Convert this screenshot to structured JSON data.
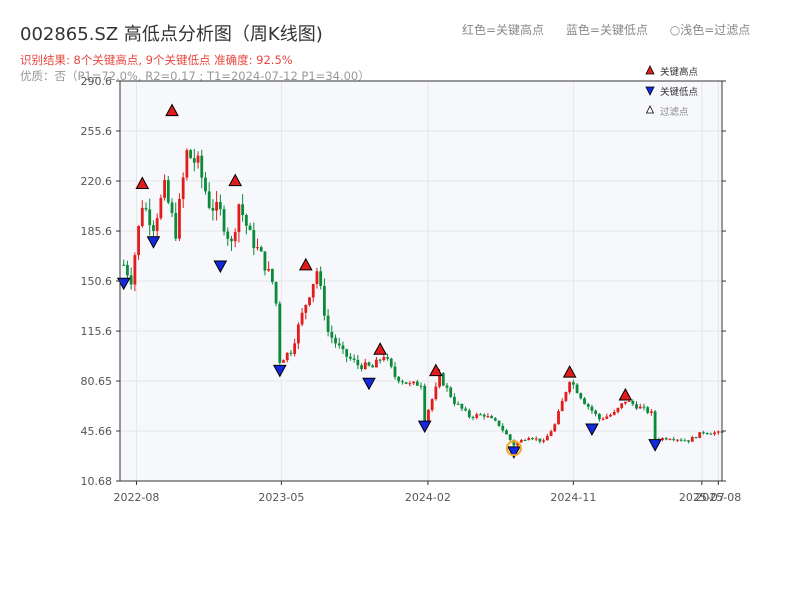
{
  "header": {
    "title": "002865.SZ 高低点分析图（周K线图)",
    "result_line": "识别结果: 8个关键高点, 9个关键低点  准确度: 92.5%",
    "quality_line": "优质：否（P1=72.0%, R2=0.17 ; T1=2024-07-12 P1=34.00）"
  },
  "top_legend": {
    "red": "红色=关键高点",
    "blue": "蓝色=关键低点",
    "light": "○浅色=过滤点"
  },
  "colors": {
    "up": "#e21b1b",
    "down": "#0b8a3a",
    "high_marker": "#e21b1b",
    "low_marker": "#1428e0",
    "filtered_ring": "#f5a623",
    "grid": "#e6e6ea",
    "plot_bg": "#f7f8fb",
    "axis": "#333333"
  },
  "chart_data": {
    "type": "candlestick",
    "title": "002865.SZ 高低点分析图（周K线图)",
    "x_range": [
      "2022-07-01",
      "2025-08-08"
    ],
    "x_ticks": [
      {
        "date": "2022-08-01",
        "label": "2022-08"
      },
      {
        "date": "2023-05-01",
        "label": "2023-05"
      },
      {
        "date": "2024-02-01",
        "label": "2024-02"
      },
      {
        "date": "2024-11-01",
        "label": "2024-11"
      },
      {
        "date": "2025-07-01",
        "label": "2025-07"
      },
      {
        "date": "2025-08-01",
        "label": "2025-08"
      }
    ],
    "ylim": [
      10.68,
      290.6
    ],
    "y_ticks": [
      {
        "value": 10.68,
        "label": "10.68"
      },
      {
        "value": 45.66,
        "label": "45.66"
      },
      {
        "value": 80.65,
        "label": "80.65"
      },
      {
        "value": 115.6,
        "label": "115.6"
      },
      {
        "value": 150.6,
        "label": "150.6"
      },
      {
        "value": 185.6,
        "label": "185.6"
      },
      {
        "value": 220.6,
        "label": "220.6"
      },
      {
        "value": 255.6,
        "label": "255.6"
      },
      {
        "value": 290.6,
        "label": "290.6"
      }
    ],
    "grid": true,
    "legend_position": "top-right",
    "legend": [
      "关键高点",
      "关键低点",
      "过滤点"
    ],
    "close_path": [
      [
        "2022-07-08",
        162
      ],
      [
        "2022-07-22",
        152
      ],
      [
        "2022-08-12",
        205
      ],
      [
        "2022-09-02",
        190
      ],
      [
        "2022-09-23",
        215
      ],
      [
        "2022-10-14",
        185
      ],
      [
        "2022-11-04",
        240
      ],
      [
        "2022-11-25",
        232
      ],
      [
        "2022-12-16",
        205
      ],
      [
        "2023-01-06",
        198
      ],
      [
        "2023-01-27",
        176
      ],
      [
        "2023-02-10",
        205
      ],
      [
        "2023-03-03",
        182
      ],
      [
        "2023-03-24",
        168
      ],
      [
        "2023-04-14",
        150
      ],
      [
        "2023-04-21",
        135
      ],
      [
        "2023-04-28",
        95
      ],
      [
        "2023-05-19",
        102
      ],
      [
        "2023-06-16",
        135
      ],
      [
        "2023-07-07",
        158
      ],
      [
        "2023-07-28",
        115
      ],
      [
        "2023-08-25",
        100
      ],
      [
        "2023-09-22",
        92
      ],
      [
        "2023-10-20",
        90
      ],
      [
        "2023-11-10",
        99
      ],
      [
        "2023-12-01",
        84
      ],
      [
        "2023-12-29",
        78
      ],
      [
        "2024-01-19",
        79
      ],
      [
        "2024-01-26",
        54
      ],
      [
        "2024-02-16",
        75
      ],
      [
        "2024-02-23",
        84
      ],
      [
        "2024-03-22",
        66
      ],
      [
        "2024-04-19",
        56
      ],
      [
        "2024-05-17",
        57
      ],
      [
        "2024-06-14",
        50
      ],
      [
        "2024-07-12",
        36
      ],
      [
        "2024-08-09",
        42
      ],
      [
        "2024-09-06",
        38
      ],
      [
        "2024-09-27",
        50
      ],
      [
        "2024-10-25",
        82
      ],
      [
        "2024-11-22",
        66
      ],
      [
        "2024-12-20",
        54
      ],
      [
        "2025-01-17",
        58
      ],
      [
        "2025-02-07",
        67
      ],
      [
        "2025-03-07",
        62
      ],
      [
        "2025-03-28",
        58
      ],
      [
        "2025-04-04",
        40
      ],
      [
        "2025-05-02",
        41
      ],
      [
        "2025-06-06",
        39
      ],
      [
        "2025-07-04",
        45
      ],
      [
        "2025-08-08",
        44
      ]
    ],
    "key_highs": [
      {
        "date": "2022-08-12",
        "value": 214
      },
      {
        "date": "2022-10-07",
        "value": 265
      },
      {
        "date": "2023-02-03",
        "value": 216
      },
      {
        "date": "2023-06-16",
        "value": 157
      },
      {
        "date": "2023-11-03",
        "value": 98
      },
      {
        "date": "2024-02-16",
        "value": 83
      },
      {
        "date": "2024-10-25",
        "value": 82
      },
      {
        "date": "2025-02-07",
        "value": 66
      }
    ],
    "key_lows": [
      {
        "date": "2022-07-08",
        "value": 154
      },
      {
        "date": "2022-09-02",
        "value": 183
      },
      {
        "date": "2023-01-06",
        "value": 166
      },
      {
        "date": "2023-04-28",
        "value": 93
      },
      {
        "date": "2023-10-13",
        "value": 84
      },
      {
        "date": "2024-01-26",
        "value": 54
      },
      {
        "date": "2024-07-12",
        "value": 36
      },
      {
        "date": "2024-12-06",
        "value": 52
      },
      {
        "date": "2025-04-04",
        "value": 41
      }
    ],
    "filtered_points": [
      {
        "date": "2024-07-12",
        "value": 35
      }
    ]
  }
}
